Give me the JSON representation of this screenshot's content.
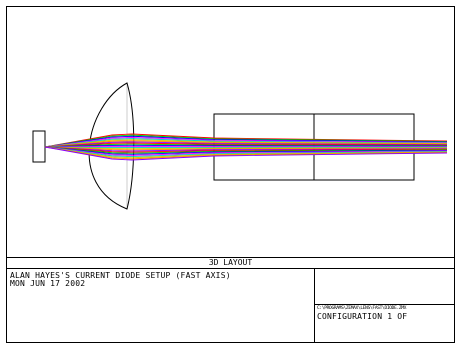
{
  "caption": "3D LAYOUT",
  "title_block": {
    "description": "ALAN HAYES'S CURRENT DIODE SETUP (FAST AXIS)",
    "date": "MON JUN 17 2002",
    "file_path": "C:\\PROGRAMS\\ZEMAX\\LENS\\FAST\\DIODE.ZMX",
    "configuration": "CONFIGURATION 1 OF"
  },
  "colors": {
    "line": "#000000",
    "rays": [
      "#ff0000",
      "#00cc00",
      "#0000ff",
      "#ff00ff",
      "#00cccc",
      "#cccc00",
      "#ff8800",
      "#8800ff"
    ]
  }
}
